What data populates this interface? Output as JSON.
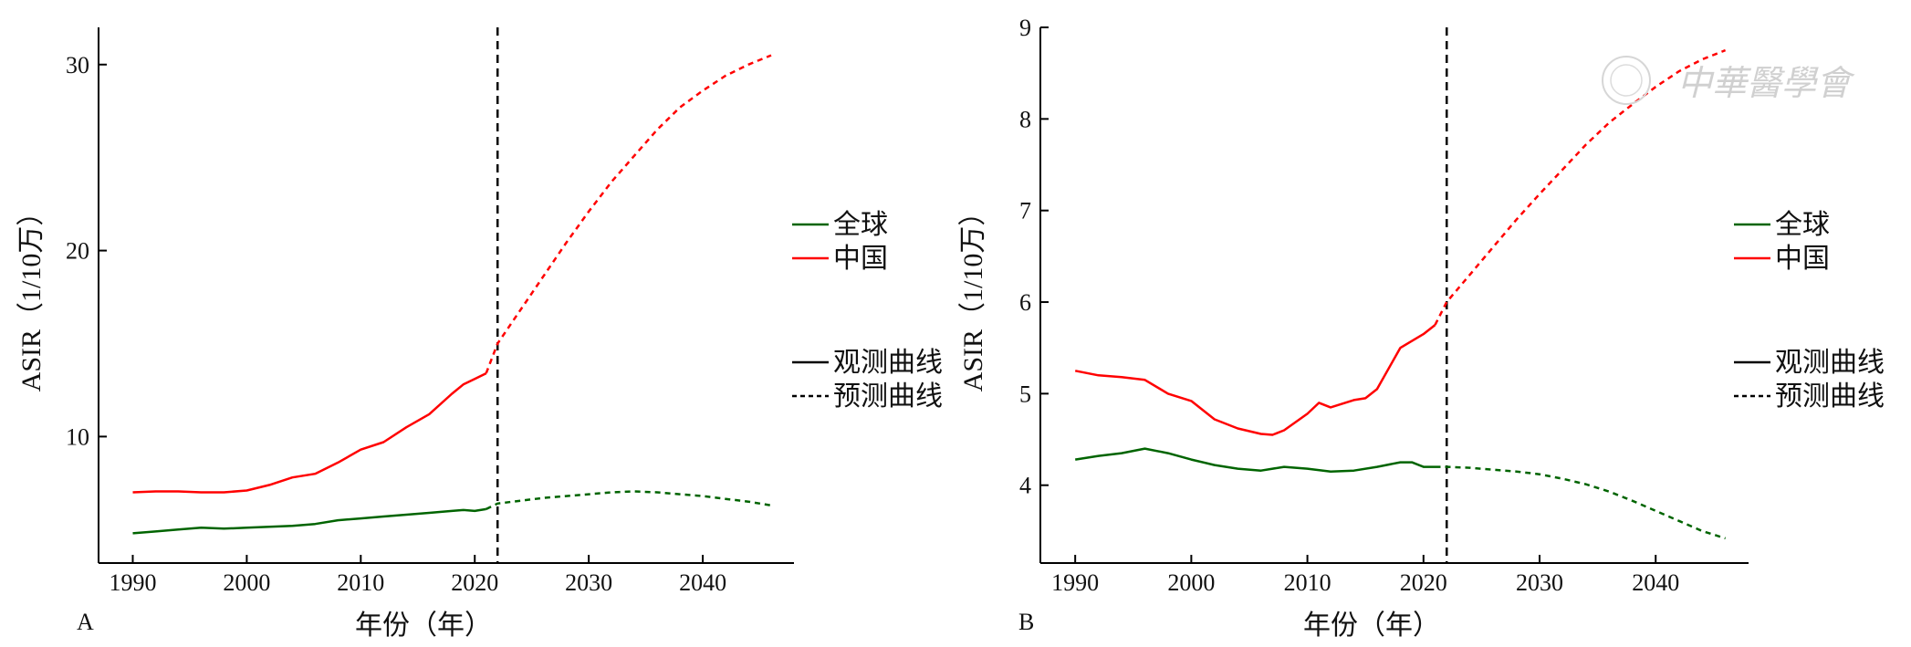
{
  "watermark": {
    "text": "中華醫學會"
  },
  "chart_data": [
    {
      "type": "line",
      "panel_label": "A",
      "xlabel": "年份（年）",
      "ylabel": "ASIR（1/10万）",
      "xlim": [
        1987,
        2048
      ],
      "ylim": [
        3.2,
        32
      ],
      "xticks": [
        1990,
        2000,
        2010,
        2020,
        2030,
        2040
      ],
      "yticks": [
        10,
        20,
        30
      ],
      "divider_year": 2022,
      "legend_placement": "right",
      "legend": {
        "series": [
          {
            "name": "全球",
            "color": "#006400"
          },
          {
            "name": "中国",
            "color": "#ff0000"
          }
        ],
        "styles": [
          {
            "name": "观测曲线",
            "dash": "solid"
          },
          {
            "name": "预测曲线",
            "dash": "dashed"
          }
        ]
      },
      "series": [
        {
          "name": "全球",
          "color": "#006400",
          "observed": {
            "x": [
              1990,
              1992,
              1994,
              1996,
              1998,
              2000,
              2002,
              2004,
              2006,
              2008,
              2010,
              2012,
              2014,
              2016,
              2018,
              2019,
              2020,
              2021
            ],
            "y": [
              4.8,
              4.9,
              5.0,
              5.1,
              5.05,
              5.1,
              5.15,
              5.2,
              5.3,
              5.5,
              5.6,
              5.7,
              5.8,
              5.9,
              6.0,
              6.05,
              6.0,
              6.1
            ]
          },
          "predicted": {
            "x": [
              2022,
              2024,
              2026,
              2028,
              2030,
              2032,
              2034,
              2036,
              2038,
              2040,
              2042,
              2044,
              2046
            ],
            "y": [
              6.4,
              6.55,
              6.7,
              6.8,
              6.9,
              7.0,
              7.05,
              7.0,
              6.9,
              6.8,
              6.65,
              6.5,
              6.3
            ]
          }
        },
        {
          "name": "中国",
          "color": "#ff0000",
          "observed": {
            "x": [
              1990,
              1992,
              1994,
              1996,
              1998,
              2000,
              2002,
              2004,
              2006,
              2008,
              2010,
              2012,
              2014,
              2016,
              2018,
              2019,
              2020,
              2021
            ],
            "y": [
              7.0,
              7.05,
              7.05,
              7.0,
              7.0,
              7.1,
              7.4,
              7.8,
              8.0,
              8.6,
              9.3,
              9.7,
              10.5,
              11.2,
              12.3,
              12.8,
              13.1,
              13.4
            ]
          },
          "predicted": {
            "x": [
              2022,
              2024,
              2026,
              2028,
              2030,
              2032,
              2034,
              2036,
              2038,
              2040,
              2042,
              2044,
              2046
            ],
            "y": [
              15.0,
              16.8,
              18.6,
              20.4,
              22.1,
              23.7,
              25.1,
              26.5,
              27.7,
              28.6,
              29.4,
              30.0,
              30.5
            ]
          }
        }
      ]
    },
    {
      "type": "line",
      "panel_label": "B",
      "xlabel": "年份（年）",
      "ylabel": "ASIR（1/10万）",
      "xlim": [
        1987,
        2048
      ],
      "ylim": [
        3.15,
        9.0
      ],
      "xticks": [
        1990,
        2000,
        2010,
        2020,
        2030,
        2040
      ],
      "yticks": [
        4,
        5,
        6,
        7,
        8,
        9
      ],
      "divider_year": 2022,
      "legend_placement": "right",
      "legend": {
        "series": [
          {
            "name": "全球",
            "color": "#006400"
          },
          {
            "name": "中国",
            "color": "#ff0000"
          }
        ],
        "styles": [
          {
            "name": "观测曲线",
            "dash": "solid"
          },
          {
            "name": "预测曲线",
            "dash": "dashed"
          }
        ]
      },
      "series": [
        {
          "name": "全球",
          "color": "#006400",
          "observed": {
            "x": [
              1990,
              1992,
              1994,
              1996,
              1998,
              2000,
              2002,
              2004,
              2006,
              2008,
              2010,
              2012,
              2014,
              2016,
              2018,
              2019,
              2020,
              2021
            ],
            "y": [
              4.28,
              4.32,
              4.35,
              4.4,
              4.35,
              4.28,
              4.22,
              4.18,
              4.16,
              4.2,
              4.18,
              4.15,
              4.16,
              4.2,
              4.25,
              4.25,
              4.2,
              4.2
            ]
          },
          "predicted": {
            "x": [
              2022,
              2024,
              2026,
              2028,
              2030,
              2032,
              2034,
              2036,
              2038,
              2040,
              2042,
              2044,
              2046
            ],
            "y": [
              4.2,
              4.19,
              4.17,
              4.15,
              4.12,
              4.07,
              4.01,
              3.93,
              3.83,
              3.72,
              3.61,
              3.5,
              3.42
            ]
          }
        },
        {
          "name": "中国",
          "color": "#ff0000",
          "observed": {
            "x": [
              1990,
              1992,
              1994,
              1996,
              1998,
              2000,
              2002,
              2004,
              2006,
              2007,
              2008,
              2010,
              2011,
              2012,
              2014,
              2015,
              2016,
              2018,
              2020,
              2021
            ],
            "y": [
              5.25,
              5.2,
              5.18,
              5.15,
              5.0,
              4.92,
              4.72,
              4.62,
              4.56,
              4.55,
              4.6,
              4.78,
              4.9,
              4.85,
              4.93,
              4.95,
              5.05,
              5.5,
              5.65,
              5.75
            ]
          },
          "predicted": {
            "x": [
              2022,
              2024,
              2026,
              2028,
              2030,
              2032,
              2034,
              2036,
              2038,
              2040,
              2042,
              2044,
              2046
            ],
            "y": [
              6.0,
              6.3,
              6.6,
              6.9,
              7.18,
              7.45,
              7.72,
              7.96,
              8.16,
              8.35,
              8.52,
              8.65,
              8.75
            ]
          }
        }
      ]
    }
  ]
}
